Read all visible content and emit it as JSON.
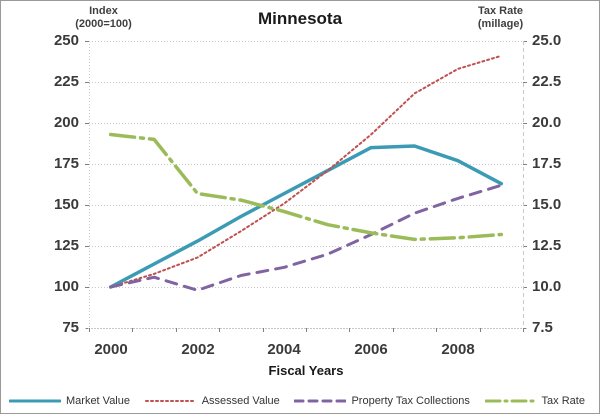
{
  "title": "Minnesota",
  "left_axis": {
    "title_line1": "Index",
    "title_line2": "(2000=100)",
    "tick_labels": [
      "250",
      "225",
      "200",
      "175",
      "150",
      "125",
      "100",
      "75"
    ]
  },
  "right_axis": {
    "title_line1": "Tax Rate",
    "title_line2": "(millage)",
    "tick_labels": [
      "25.0",
      "22.5",
      "20.0",
      "17.5",
      "15.0",
      "12.5",
      "10.0",
      "7.5"
    ]
  },
  "x_axis": {
    "title": "Fiscal Years",
    "visible_labels": [
      "2000",
      "2002",
      "2004",
      "2006",
      "2008"
    ]
  },
  "colors": {
    "market_value": "#3c9bb4",
    "assessed_value": "#c0504d",
    "property_tax_collections": "#8064a2",
    "tax_rate": "#9bbb59",
    "gridline": "#c8c8c8",
    "axis_tick": "#808080",
    "text": "#3a3a3a"
  },
  "chart_data": {
    "type": "line",
    "x": [
      2000,
      2001,
      2002,
      2003,
      2004,
      2005,
      2006,
      2007,
      2008,
      2009
    ],
    "series": [
      {
        "name": "Market Value",
        "axis": "left",
        "color": "#3c9bb4",
        "style": "solid",
        "width": 3.5,
        "values": [
          100,
          114,
          128,
          143,
          157,
          171,
          185,
          186,
          177,
          163
        ]
      },
      {
        "name": "Assessed Value",
        "axis": "left",
        "color": "#c0504d",
        "style": "dotted",
        "width": 2,
        "values": [
          100,
          108,
          118,
          134,
          151,
          171,
          193,
          218,
          233,
          241
        ]
      },
      {
        "name": "Property Tax Collections",
        "axis": "left",
        "color": "#8064a2",
        "style": "dashed",
        "width": 3,
        "values": [
          100,
          106,
          98,
          107,
          112,
          120,
          132,
          145,
          154,
          162
        ]
      },
      {
        "name": "Tax Rate",
        "axis": "right",
        "color": "#9bbb59",
        "style": "dashdot",
        "width": 3.5,
        "values": [
          19.3,
          19.0,
          15.7,
          15.3,
          14.6,
          13.8,
          13.3,
          12.9,
          13.0,
          13.2
        ]
      }
    ],
    "left_ylim": [
      75,
      250
    ],
    "right_ylim": [
      7.5,
      25.0
    ],
    "left_tick_step": 25,
    "grid": true,
    "legend_position": "bottom"
  }
}
